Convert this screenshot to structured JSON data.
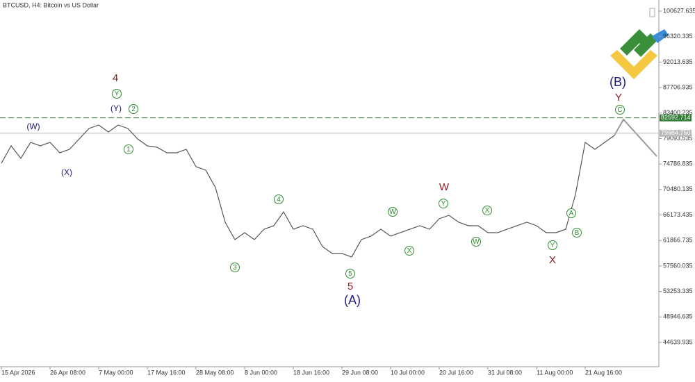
{
  "chart_data": {
    "type": "line",
    "title": "BTCUSD, H4:  Bitcoin vs US Dollar",
    "categories": [
      "15 Apr 2026",
      null,
      null,
      null,
      null,
      "26 Apr 08:00",
      null,
      null,
      null,
      null,
      "7 May 00:00",
      null,
      null,
      null,
      null,
      "17 May 16:00",
      null,
      null,
      null,
      null,
      "28 May 08:00",
      null,
      null,
      null,
      null,
      "8 Jun 00:00",
      null,
      null,
      null,
      null,
      "18 Jun 16:00",
      null,
      null,
      null,
      null,
      "29 Jun 08:00",
      null,
      null,
      null,
      null,
      "10 Jul 00:00",
      null,
      null,
      null,
      null,
      "20 Jul 16:00",
      null,
      null,
      null,
      null,
      "31 Jul 08:00",
      null,
      null,
      null,
      null,
      "11 Aug 00:00",
      null,
      null,
      null,
      null,
      "21 Aug 16:00",
      null,
      null,
      null
    ],
    "series": [
      {
        "name": "BTCUSD",
        "color": "#555555",
        "values": [
          74924,
          77858,
          75746,
          78445,
          77858,
          78445,
          76685,
          77271,
          79032,
          80792,
          81379,
          80206,
          81379,
          80792,
          79032,
          77858,
          77623,
          76685,
          76685,
          77271,
          74337,
          73750,
          70816,
          64948,
          62013,
          63187,
          62013,
          63774,
          64361,
          66708,
          63774,
          64361,
          63774,
          60840,
          59666,
          59666,
          59079,
          62013,
          62600,
          63774,
          62600,
          63187,
          63774,
          64361,
          63774,
          65534,
          66121,
          64948,
          64361,
          64361,
          63187,
          63187,
          63774,
          64361,
          64948,
          64361,
          63187,
          63187,
          63774,
          69642,
          78445,
          77271,
          78445,
          79619
        ]
      }
    ],
    "ylim": [
      40532,
      102506
    ],
    "yticks": [
      100627.635,
      96320.335,
      92013.635,
      87706.935,
      83400.235,
      79093.535,
      74786.835,
      70480.135,
      66173.435,
      61866.735,
      57560.035,
      53253.335,
      48946.635,
      44639.935
    ],
    "levels": [
      {
        "value": 82592.714,
        "color": "#2e7d32"
      },
      {
        "value": {
          "value": 79984.75,
          "label": "79984.750"
        },
        "color": "#bbbbbb"
      }
    ],
    "annotations": [
      "4",
      "Y",
      "(Y)",
      "(W)",
      "(X)",
      "2",
      "1",
      "3",
      "4",
      "5",
      "5",
      "(A)",
      "W",
      "X",
      "Y",
      "W",
      "X",
      "W",
      "Y",
      "X",
      "A",
      "B",
      "(B)",
      "Y",
      "C"
    ]
  }
}
